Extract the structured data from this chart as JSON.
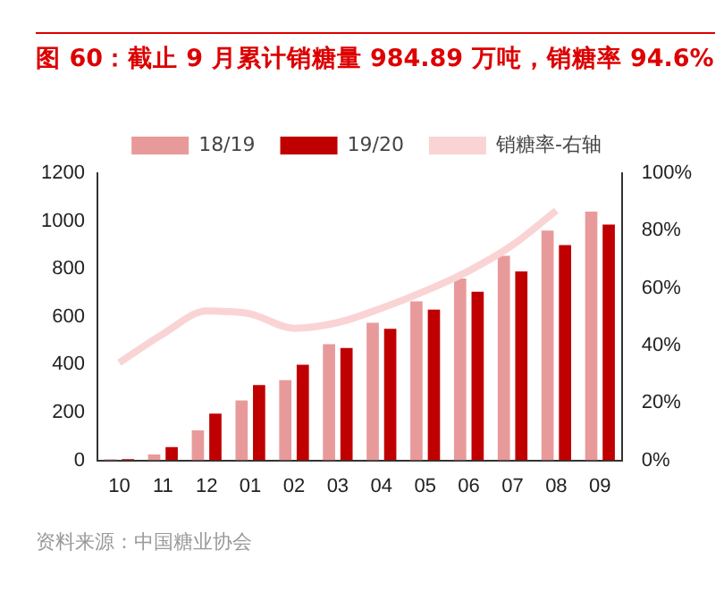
{
  "chart_data": {
    "type": "bar",
    "title": "图 60：截止 9 月累计销糖量 984.89 万吨，销糖率 94.6%",
    "categories": [
      "10",
      "11",
      "12",
      "01",
      "02",
      "03",
      "04",
      "05",
      "06",
      "07",
      "08",
      "09"
    ],
    "series": [
      {
        "name": "18/19",
        "color": "#e89a9a",
        "values": [
          5,
          25,
          125,
          250,
          335,
          485,
          575,
          665,
          760,
          855,
          960,
          1040
        ]
      },
      {
        "name": "19/20",
        "color": "#c00000",
        "values": [
          5,
          55,
          195,
          315,
          400,
          470,
          550,
          630,
          705,
          790,
          900,
          985
        ]
      },
      {
        "name": "销糖率-右轴",
        "type": "line",
        "axis": "y2",
        "color": "#fad4d4",
        "values": [
          34,
          44,
          52,
          51,
          46,
          48,
          53,
          59,
          66,
          75,
          87,
          null
        ]
      }
    ],
    "ylim": [
      0,
      1200
    ],
    "yticks": [
      0,
      200,
      400,
      600,
      800,
      1000,
      1200
    ],
    "y2lim": [
      0,
      100
    ],
    "y2ticks": [
      {
        "value": 0,
        "label": "0%"
      },
      {
        "value": 20,
        "label": "20%"
      },
      {
        "value": 40,
        "label": "40%"
      },
      {
        "value": 60,
        "label": "60%"
      },
      {
        "value": 80,
        "label": "80%"
      },
      {
        "value": 100,
        "label": "100%"
      }
    ],
    "grid": false,
    "legend": "top",
    "marker": "none",
    "annotations": [
      "资料来源：中国糖业协会"
    ]
  }
}
